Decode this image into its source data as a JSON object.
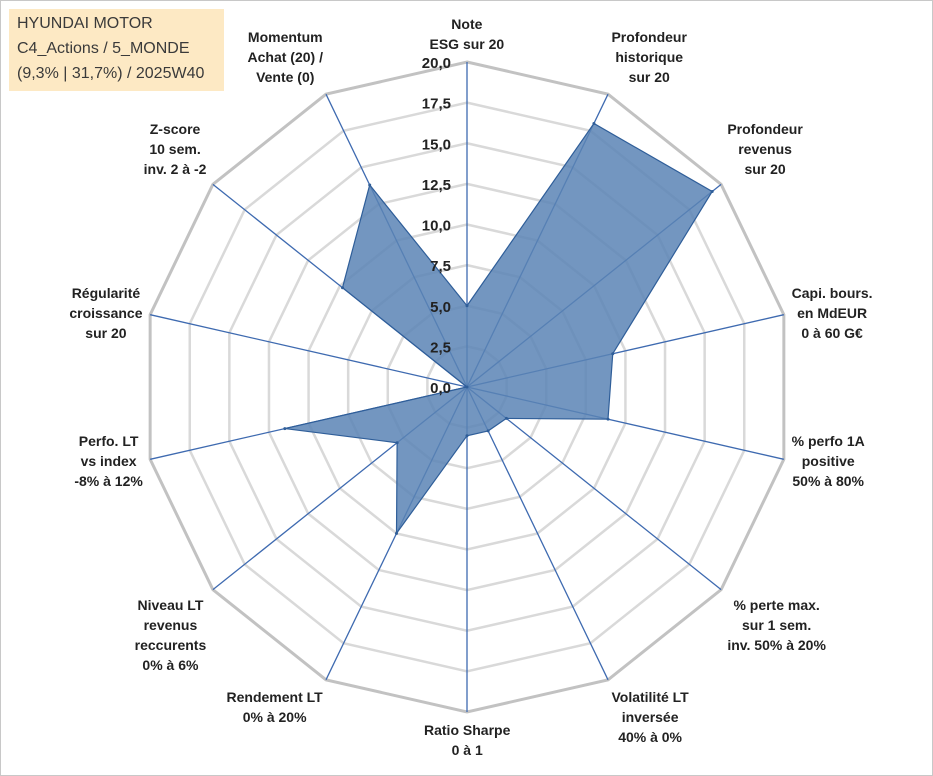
{
  "title": {
    "line1": "HYUNDAI MOTOR",
    "line2": "C4_Actions / 5_MONDE",
    "line3": "(9,3% | 31,7%) / 2025W40"
  },
  "chart_data": {
    "type": "radar",
    "rmin": 0,
    "rmax": 20,
    "rings": [
      0,
      2.5,
      5,
      7.5,
      10,
      12.5,
      15,
      17.5,
      20
    ],
    "tick_labels": [
      "0,0",
      "2,5",
      "5,0",
      "7,5",
      "10,0",
      "12,5",
      "15,0",
      "17,5",
      "20,0"
    ],
    "axes": [
      {
        "label": [
          "Note",
          "ESG sur 20"
        ],
        "value": 5.0
      },
      {
        "label": [
          "Profondeur",
          "historique",
          "sur 20"
        ],
        "value": 18.0
      },
      {
        "label": [
          "Profondeur",
          "revenus",
          "sur 20"
        ],
        "value": 19.3
      },
      {
        "label": [
          "Capi. bours.",
          "en MdEUR",
          "0 à 60 G€"
        ],
        "value": 9.2
      },
      {
        "label": [
          "% perfo 1A",
          "positive",
          "50% à 80%"
        ],
        "value": 8.9
      },
      {
        "label": [
          "% perte max.",
          "sur 1 sem.",
          "inv. 50% à 20%"
        ],
        "value": 3.1
      },
      {
        "label": [
          "Volatilité LT",
          "inversée",
          "40% à 0%"
        ],
        "value": 3.0
      },
      {
        "label": [
          "Ratio Sharpe",
          "0 à 1"
        ],
        "value": 3.0
      },
      {
        "label": [
          "Rendement LT",
          "0% à 20%"
        ],
        "value": 10.0
      },
      {
        "label": [
          "Niveau LT",
          "revenus",
          "reccurents",
          "0% à 6%"
        ],
        "value": 5.5
      },
      {
        "label": [
          "Perfo. LT",
          "vs index",
          "-8% à 12%"
        ],
        "value": 11.5
      },
      {
        "label": [
          "Régularité",
          "croissance",
          "sur 20"
        ],
        "value": 0.0
      },
      {
        "label": [
          "Z-score",
          "10 sem.",
          "inv. 2 à -2"
        ],
        "value": 9.8
      },
      {
        "label": [
          "Momentum",
          "Achat (20) /",
          "Vente (0)"
        ],
        "value": 13.8
      }
    ],
    "colors": {
      "fill": "#5b84b5",
      "stroke": "#2f5e99",
      "spoke": "#3e6ab0",
      "grid": "#c2c2c2",
      "grid_inner": "#d9d9d9"
    }
  }
}
